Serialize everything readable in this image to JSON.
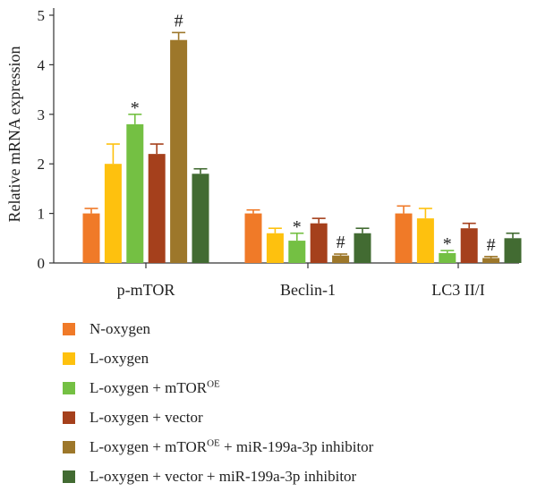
{
  "chart_data": {
    "type": "bar",
    "ylabel": "Relative mRNA expression",
    "ylim": [
      0,
      5
    ],
    "yticks": [
      "0",
      "1",
      "2",
      "3",
      "4",
      "5"
    ],
    "categories": [
      "p-mTOR",
      "Beclin-1",
      "LC3 II/I"
    ],
    "series": [
      {
        "name": "N-oxygen",
        "color": "#f07a28",
        "values": [
          1.0,
          1.0,
          1.0
        ],
        "errors": [
          0.1,
          0.07,
          0.15
        ],
        "markers": [
          "",
          "",
          ""
        ]
      },
      {
        "name": "L-oxygen",
        "color": "#fec10e",
        "values": [
          2.0,
          0.6,
          0.9
        ],
        "errors": [
          0.4,
          0.1,
          0.2
        ],
        "markers": [
          "",
          "",
          ""
        ]
      },
      {
        "name": "L-oxygen + mTOR",
        "name_sup": "OE",
        "color": "#74c043",
        "values": [
          2.8,
          0.45,
          0.2
        ],
        "errors": [
          0.2,
          0.15,
          0.05
        ],
        "markers": [
          "*",
          "*",
          "*"
        ]
      },
      {
        "name": "L-oxygen + vector",
        "color": "#a5401c",
        "values": [
          2.2,
          0.8,
          0.7
        ],
        "errors": [
          0.2,
          0.1,
          0.1
        ],
        "markers": [
          "",
          "",
          ""
        ]
      },
      {
        "name": "L-oxygen + mTOR",
        "name_sup": "OE",
        "name_suffix": " + miR-199a-3p inhibitor",
        "color": "#9d772a",
        "values": [
          4.5,
          0.15,
          0.1
        ],
        "errors": [
          0.15,
          0.03,
          0.03
        ],
        "markers": [
          "#",
          "#",
          "#"
        ]
      },
      {
        "name": "L-oxygen + vector + miR-199a-3p inhibitor",
        "color": "#426b32",
        "values": [
          1.8,
          0.6,
          0.5
        ],
        "errors": [
          0.1,
          0.1,
          0.1
        ],
        "markers": [
          "",
          "",
          ""
        ]
      }
    ]
  }
}
